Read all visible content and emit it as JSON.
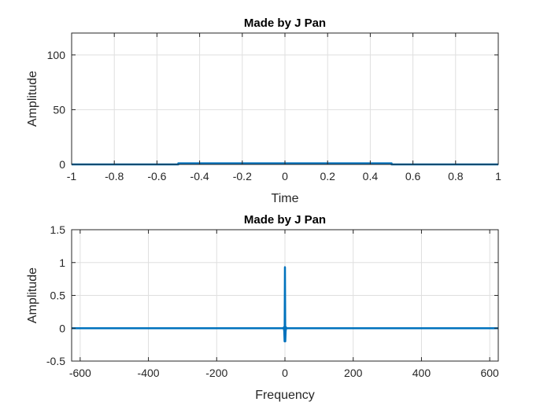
{
  "chart_data": [
    {
      "type": "line",
      "title": "Made by J Pan",
      "xlabel": "Time",
      "ylabel": "Amplitude",
      "xlim": [
        -1,
        1
      ],
      "ylim": [
        0,
        120
      ],
      "xticks": [
        -1,
        -0.8,
        -0.6,
        -0.4,
        -0.2,
        0,
        0.2,
        0.4,
        0.6,
        0.8,
        1
      ],
      "xtick_labels": [
        "-1",
        "-0.8",
        "-0.6",
        "-0.4",
        "-0.2",
        "0",
        "0.2",
        "0.4",
        "0.6",
        "0.8",
        "1"
      ],
      "yticks": [
        0,
        50,
        100
      ],
      "ytick_labels": [
        "0",
        "50",
        "100"
      ],
      "grid": true,
      "color": "#0072BD",
      "series": [
        {
          "x": [
            -1,
            -0.5,
            -0.5,
            0.5,
            0.5,
            1
          ],
          "values": [
            0,
            0,
            1,
            1,
            0,
            0
          ]
        }
      ]
    },
    {
      "type": "line",
      "title": "Made by J Pan",
      "xlabel": "Frequency",
      "ylabel": "Amplitude",
      "xlim": [
        -625,
        625
      ],
      "ylim": [
        -0.5,
        1.5
      ],
      "xticks": [
        -600,
        -400,
        -200,
        0,
        200,
        400,
        600
      ],
      "xtick_labels": [
        "-600",
        "-400",
        "-200",
        "0",
        "200",
        "400",
        "600"
      ],
      "yticks": [
        -0.5,
        0,
        0.5,
        1,
        1.5
      ],
      "ytick_labels": [
        "-0.5",
        "0",
        "0.5",
        "1",
        "1.5"
      ],
      "grid": true,
      "color": "#0072BD",
      "series": [
        {
          "x": [
            -625,
            -3,
            -2,
            -1,
            0,
            1,
            2,
            3,
            625
          ],
          "values": [
            0,
            0,
            -0.05,
            -0.2,
            0.93,
            -0.2,
            -0.05,
            0,
            0
          ]
        }
      ]
    }
  ]
}
